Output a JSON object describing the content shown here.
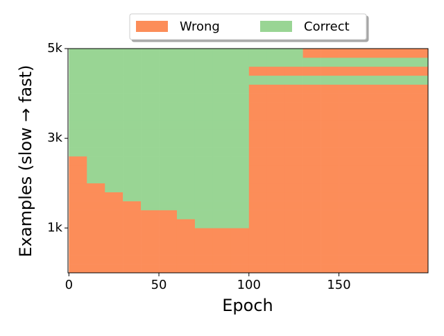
{
  "chart_data": {
    "type": "heatmap",
    "xlabel": "Epoch",
    "ylabel": "Examples (slow → fast)",
    "xlim": [
      -0.5,
      199.5
    ],
    "ylim": [
      0,
      5000
    ],
    "xticks": [
      0,
      50,
      100,
      150
    ],
    "yticks": [
      {
        "value": 1000,
        "label": "1k"
      },
      {
        "value": 3000,
        "label": "3k"
      },
      {
        "value": 5000,
        "label": "5k"
      }
    ],
    "xbins": [
      0,
      10,
      20,
      30,
      40,
      50,
      60,
      70,
      80,
      90,
      100,
      110,
      120,
      130,
      140,
      150,
      160,
      170,
      180,
      190,
      200
    ],
    "ybins": [
      0,
      200,
      400,
      600,
      800,
      1000,
      1200,
      1400,
      1600,
      1800,
      2000,
      2200,
      2400,
      2600,
      2800,
      3000,
      3200,
      3400,
      3600,
      3800,
      4000,
      4200,
      4400,
      4600,
      4800,
      5000
    ],
    "series": [
      {
        "name": "Wrong",
        "color": "#fc8d59",
        "value": 0
      },
      {
        "name": "Correct",
        "color": "#99d594",
        "value": 1
      }
    ],
    "legend_position": "upper center",
    "values": [
      [
        0,
        0,
        0,
        0,
        0,
        0,
        0,
        0,
        0,
        0,
        0,
        0,
        0,
        0,
        0,
        0,
        0,
        0,
        0,
        0
      ],
      [
        0,
        0,
        0,
        0,
        0,
        0,
        0,
        0,
        0,
        0,
        0,
        0,
        0,
        0,
        0,
        0,
        0,
        0,
        0,
        0
      ],
      [
        0,
        0,
        0,
        0,
        0,
        0,
        0,
        0,
        0,
        0,
        0,
        0,
        0,
        0,
        0,
        0,
        0,
        0,
        0,
        0
      ],
      [
        0,
        0,
        0,
        0,
        0,
        0,
        0,
        0,
        0,
        0,
        0,
        0,
        0,
        0,
        0,
        0,
        0,
        0,
        0,
        0
      ],
      [
        0,
        0,
        0,
        0,
        0,
        0,
        0,
        0,
        0,
        0,
        0,
        0,
        0,
        0,
        0,
        0,
        0,
        0,
        0,
        0
      ],
      [
        0,
        0,
        0,
        0,
        0,
        0,
        0,
        1,
        1,
        1,
        0,
        0,
        0,
        0,
        0,
        0,
        0,
        0,
        0,
        0
      ],
      [
        0,
        0,
        0,
        0,
        0,
        0,
        1,
        1,
        1,
        1,
        0,
        0,
        0,
        0,
        0,
        0,
        0,
        0,
        0,
        0
      ],
      [
        0,
        0,
        0,
        0,
        1,
        1,
        1,
        1,
        1,
        1,
        0,
        0,
        0,
        0,
        0,
        0,
        0,
        0,
        0,
        0
      ],
      [
        0,
        0,
        0,
        1,
        1,
        1,
        1,
        1,
        1,
        1,
        0,
        0,
        0,
        0,
        0,
        0,
        0,
        0,
        0,
        0
      ],
      [
        0,
        0,
        1,
        1,
        1,
        1,
        1,
        1,
        1,
        1,
        0,
        0,
        0,
        0,
        0,
        0,
        0,
        0,
        0,
        0
      ],
      [
        0,
        1,
        1,
        1,
        1,
        1,
        1,
        1,
        1,
        1,
        0,
        0,
        0,
        0,
        0,
        0,
        0,
        0,
        0,
        0
      ],
      [
        0,
        1,
        1,
        1,
        1,
        1,
        1,
        1,
        1,
        1,
        0,
        0,
        0,
        0,
        0,
        0,
        0,
        0,
        0,
        0
      ],
      [
        0,
        1,
        1,
        1,
        1,
        1,
        1,
        1,
        1,
        1,
        0,
        0,
        0,
        0,
        0,
        0,
        0,
        0,
        0,
        0
      ],
      [
        1,
        1,
        1,
        1,
        1,
        1,
        1,
        1,
        1,
        1,
        0,
        0,
        0,
        0,
        0,
        0,
        0,
        0,
        0,
        0
      ],
      [
        1,
        1,
        1,
        1,
        1,
        1,
        1,
        1,
        1,
        1,
        0,
        0,
        0,
        0,
        0,
        0,
        0,
        0,
        0,
        0
      ],
      [
        1,
        1,
        1,
        1,
        1,
        1,
        1,
        1,
        1,
        1,
        0,
        0,
        0,
        0,
        0,
        0,
        0,
        0,
        0,
        0
      ],
      [
        1,
        1,
        1,
        1,
        1,
        1,
        1,
        1,
        1,
        1,
        0,
        0,
        0,
        0,
        0,
        0,
        0,
        0,
        0,
        0
      ],
      [
        1,
        1,
        1,
        1,
        1,
        1,
        1,
        1,
        1,
        1,
        0,
        0,
        0,
        0,
        0,
        0,
        0,
        0,
        0,
        0
      ],
      [
        1,
        1,
        1,
        1,
        1,
        1,
        1,
        1,
        1,
        1,
        0,
        0,
        0,
        0,
        0,
        0,
        0,
        0,
        0,
        0
      ],
      [
        1,
        1,
        1,
        1,
        1,
        1,
        1,
        1,
        1,
        1,
        0,
        0,
        0,
        0,
        0,
        0,
        0,
        0,
        0,
        0
      ],
      [
        1,
        1,
        1,
        1,
        1,
        1,
        1,
        1,
        1,
        1,
        0,
        0,
        0,
        0,
        0,
        0,
        0,
        0,
        0,
        0
      ],
      [
        1,
        1,
        1,
        1,
        1,
        1,
        1,
        1,
        1,
        1,
        1,
        1,
        1,
        1,
        1,
        1,
        1,
        1,
        1,
        1
      ],
      [
        1,
        1,
        1,
        1,
        1,
        1,
        1,
        1,
        1,
        1,
        0,
        0,
        0,
        0,
        0,
        0,
        0,
        0,
        0,
        0
      ],
      [
        1,
        1,
        1,
        1,
        1,
        1,
        1,
        1,
        1,
        1,
        1,
        1,
        1,
        1,
        1,
        1,
        1,
        1,
        1,
        1
      ],
      [
        1,
        1,
        1,
        1,
        1,
        1,
        1,
        1,
        1,
        1,
        1,
        1,
        1,
        0,
        0,
        0,
        0,
        0,
        0,
        0
      ]
    ]
  }
}
